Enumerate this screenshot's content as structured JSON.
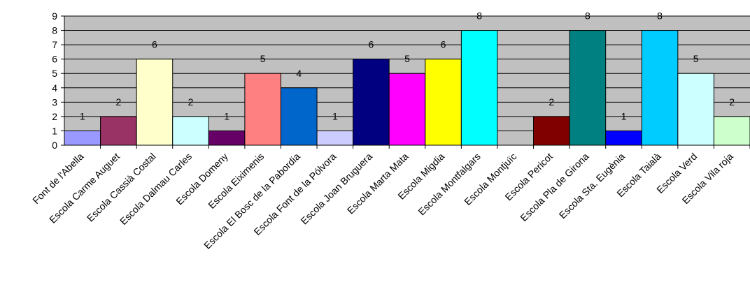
{
  "chart_data": {
    "type": "bar",
    "title": "",
    "xlabel": "",
    "ylabel": "",
    "ylim": [
      0,
      9
    ],
    "yticks": [
      0,
      1,
      2,
      3,
      4,
      5,
      6,
      7,
      8,
      9
    ],
    "grid": true,
    "legend": "none",
    "plot_background": "#c0c0c0",
    "categories": [
      "Font de l'Abella",
      "Escola  Carme Auguet",
      "Escola  Cassià Costal",
      "Escola  Dalmau Carles",
      "Escola  Domeny",
      "Escola  Eiximenis",
      "Escola  El Bosc de la Pabordia",
      "Escola  Font de la Pólvora",
      "Escola  Joan Bruguera",
      "Escola  Marta  Mata",
      "Escola  Migdia",
      "Escola  Montfalgars",
      "Escola  Montjuïc",
      "Escola  Pericot",
      "Escola  Pla de Girona",
      "Escola  Sta. Eugènia",
      "Escola  Taialà",
      "Escola  Verd",
      "Escola  Vila roja"
    ],
    "values": [
      1,
      2,
      6,
      2,
      1,
      5,
      4,
      1,
      6,
      5,
      6,
      8,
      null,
      2,
      8,
      1,
      8,
      5,
      2
    ],
    "data_labels": [
      "1",
      "2",
      "6",
      "2",
      "1",
      "5",
      "4",
      "1",
      "6",
      "5",
      "6",
      "8",
      "",
      "2",
      "8",
      "1",
      "8",
      "5",
      "2"
    ],
    "colors": [
      "#9999ff",
      "#993366",
      "#ffffcc",
      "#ccffff",
      "#660066",
      "#ff8080",
      "#0066cc",
      "#ccccff",
      "#000080",
      "#ff00ff",
      "#ffff00",
      "#00ffff",
      "#800080",
      "#800000",
      "#008080",
      "#0000ff",
      "#00ccff",
      "#ccffff",
      "#ccffcc"
    ]
  }
}
